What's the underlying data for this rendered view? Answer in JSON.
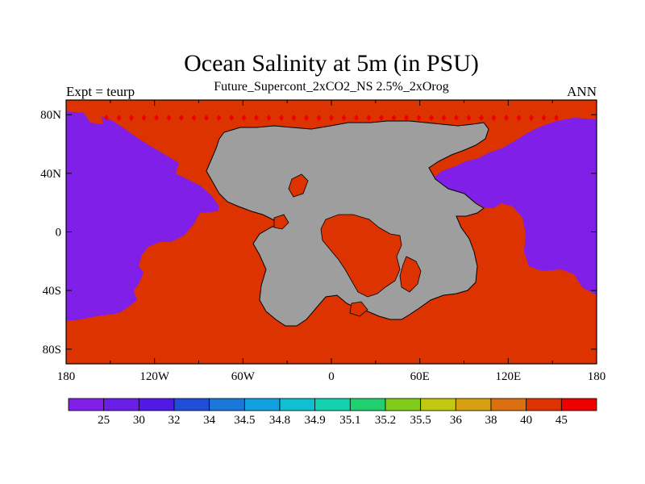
{
  "title": "Ocean Salinity at 5m (in PSU)",
  "subtitle": "Future_Supercont_2xCO2_NS 2.5%_2xOrog",
  "left_label": "Expt = teurp",
  "right_label": "ANN",
  "map": {
    "x_ticks": [
      {
        "lon": -180,
        "label": "180"
      },
      {
        "lon": -120,
        "label": "120W"
      },
      {
        "lon": -60,
        "label": "60W"
      },
      {
        "lon": 0,
        "label": "0"
      },
      {
        "lon": 60,
        "label": "60E"
      },
      {
        "lon": 120,
        "label": "120E"
      },
      {
        "lon": 180,
        "label": "180"
      }
    ],
    "y_ticks": [
      {
        "lat": 80,
        "label": "80N"
      },
      {
        "lat": 40,
        "label": "40N"
      },
      {
        "lat": 0,
        "label": "0"
      },
      {
        "lat": -40,
        "label": "40S"
      },
      {
        "lat": -80,
        "label": "80S"
      }
    ],
    "colors": {
      "ocean": "#dd3300",
      "land": "#9e9e9e",
      "fresh_water": "#7f1fe8",
      "coast_outline": "#000000",
      "arctic_dots": "#ee0000"
    }
  },
  "colorbar": {
    "colors": [
      "#7f1fe8",
      "#6a1ee6",
      "#5019e4",
      "#1f4fd8",
      "#1a78d8",
      "#12a0e0",
      "#10c0d2",
      "#12d2b0",
      "#20d070",
      "#80cc1a",
      "#c0c810",
      "#d6a010",
      "#dc7010",
      "#dd3300",
      "#ee0000"
    ],
    "labels": [
      "25",
      "30",
      "32",
      "34",
      "34.5",
      "34.8",
      "34.9",
      "35.1",
      "35.2",
      "35.5",
      "36",
      "38",
      "40",
      "45"
    ]
  }
}
